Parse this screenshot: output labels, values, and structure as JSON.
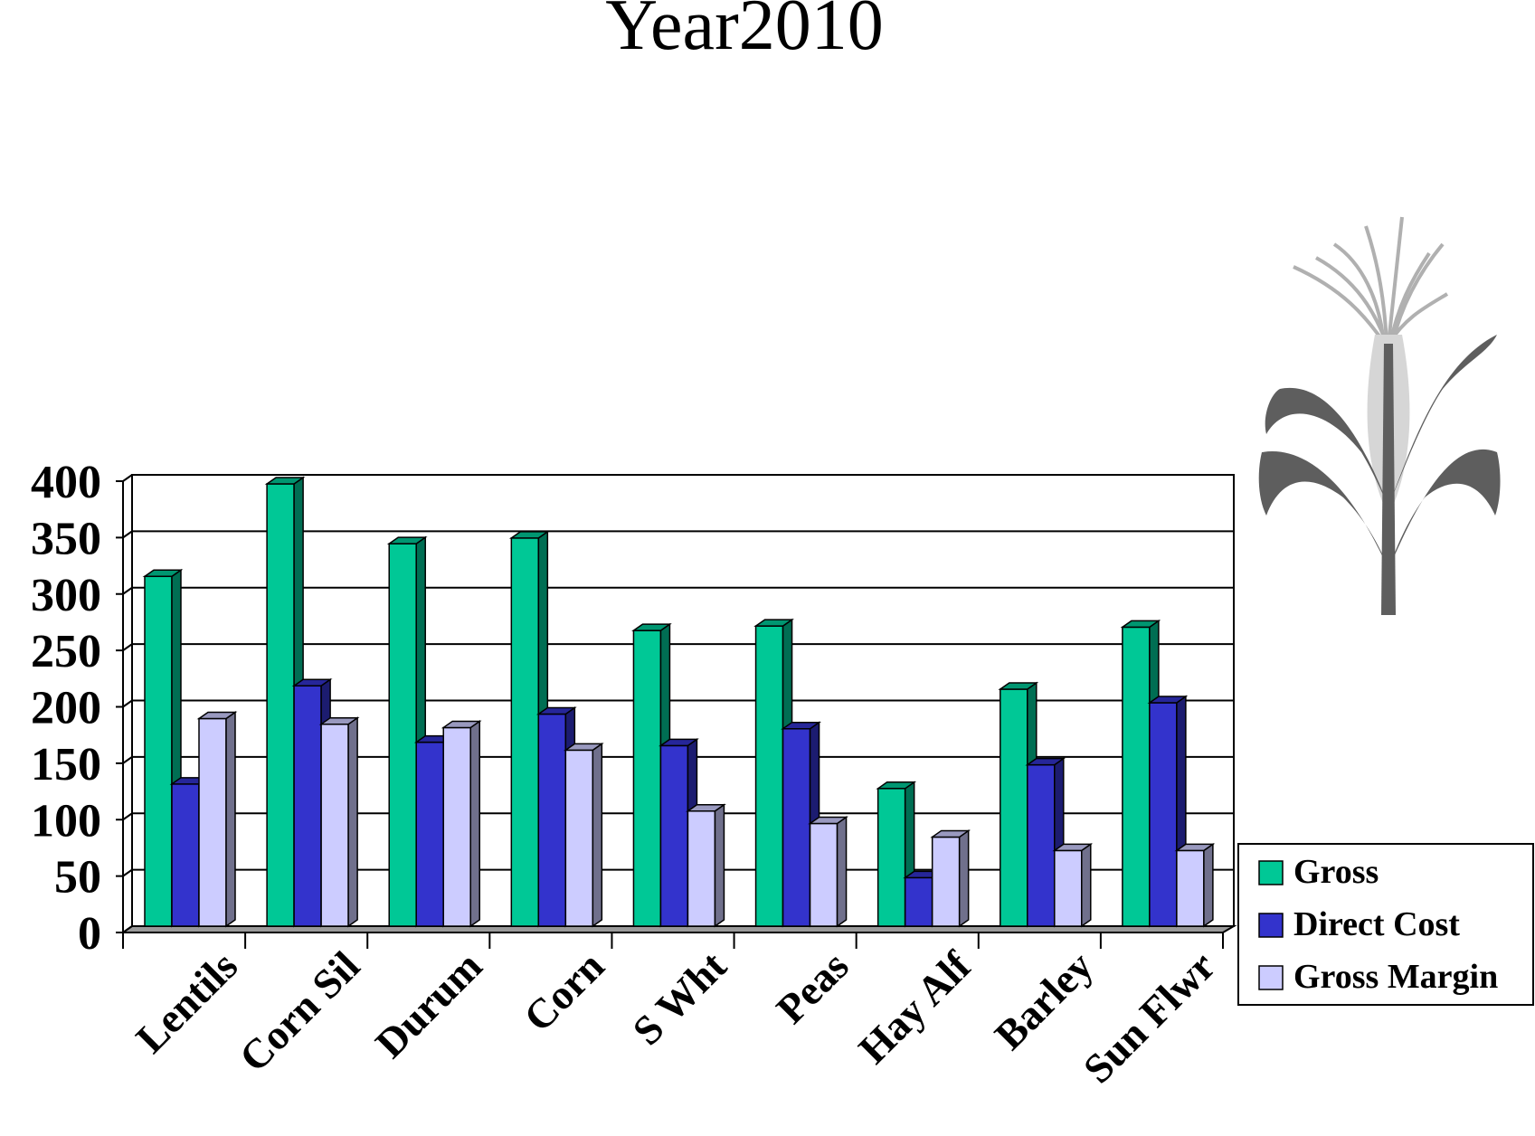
{
  "chart_data": {
    "type": "bar",
    "title": "Year2010",
    "categories": [
      "Lentils",
      "Corn Sil",
      "Durum",
      "Corn",
      "S Wht",
      "Peas",
      "Hay Alf",
      "Barley",
      "Sun Flwr"
    ],
    "series": [
      {
        "name": "Gross",
        "values": [
          310,
          392,
          339,
          344,
          262,
          266,
          122,
          210,
          265
        ],
        "color": "#00c896"
      },
      {
        "name": "Direct Cost",
        "values": [
          126,
          213,
          163,
          188,
          160,
          175,
          43,
          143,
          198
        ],
        "color": "#3333cc"
      },
      {
        "name": "Gross Margin",
        "values": [
          184,
          179,
          176,
          156,
          102,
          91,
          79,
          67,
          67
        ],
        "color": "#ccccff"
      }
    ],
    "yticks": [
      "0",
      "50",
      "100",
      "150",
      "200",
      "250",
      "300",
      "350",
      "400"
    ],
    "ylim": [
      0,
      400
    ],
    "grid": true,
    "legend_position": "bottom-right",
    "style": "3d-clustered-column",
    "decoration": "corn-plant-icon"
  }
}
